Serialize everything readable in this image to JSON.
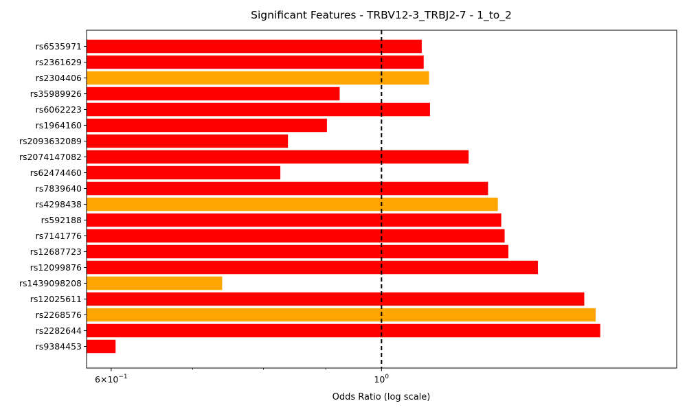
{
  "chart_data": {
    "type": "bar",
    "orientation": "horizontal",
    "title": "Significant Features - TRBV12-3_TRBJ2-7 - 1_to_2",
    "xlabel": "Odds Ratio (log scale)",
    "ylabel": "",
    "x_scale": "log",
    "xlim": [
      0.5727,
      1.747
    ],
    "reference_line": {
      "x": 1.0,
      "style": "dashed",
      "color": "#000000"
    },
    "x_ticks": [
      {
        "value": 0.6,
        "base": "6",
        "mult": "×",
        "exp_base": "10",
        "exp": "−1"
      },
      {
        "value": 1.0,
        "base": "10",
        "exp": "0"
      }
    ],
    "minor_ticks": [
      0.7,
      0.8,
      0.9
    ],
    "categories": [
      "rs6535971",
      "rs2361629",
      "rs2304406",
      "rs35989926",
      "rs6062223",
      "rs1964160",
      "rs2093632089",
      "rs2074147082",
      "rs62474460",
      "rs7839640",
      "rs4298438",
      "rs592188",
      "rs7141776",
      "rs12687723",
      "rs12099876",
      "rs1439098208",
      "rs12025611",
      "rs2268576",
      "rs2282644",
      "rs9384453"
    ],
    "values": [
      1.079,
      1.083,
      1.094,
      0.924,
      1.096,
      0.902,
      0.838,
      1.179,
      0.826,
      1.223,
      1.246,
      1.254,
      1.262,
      1.271,
      1.344,
      0.74,
      1.467,
      1.499,
      1.512,
      0.605
    ],
    "bar_colors": [
      "#ff0000",
      "#ff0000",
      "#ffa500",
      "#ff0000",
      "#ff0000",
      "#ff0000",
      "#ff0000",
      "#ff0000",
      "#ff0000",
      "#ff0000",
      "#ffa500",
      "#ff0000",
      "#ff0000",
      "#ff0000",
      "#ff0000",
      "#ffa500",
      "#ff0000",
      "#ffa500",
      "#ff0000",
      "#ff0000"
    ],
    "grid": false,
    "legend": "none"
  }
}
